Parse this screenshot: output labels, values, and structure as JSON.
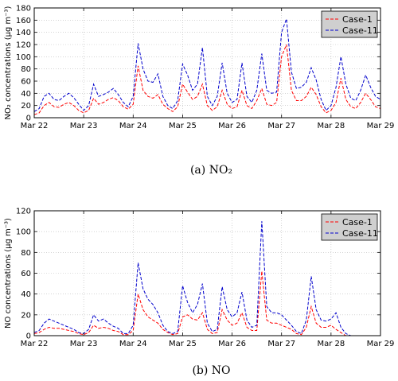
{
  "chart_data": [
    {
      "type": "line",
      "caption": "(a) NO₂",
      "ylabel": "NO₂ concentrations (μg m⁻³)",
      "xlim": [
        0,
        7
      ],
      "ylim": [
        0,
        180
      ],
      "yticks": [
        0,
        20,
        40,
        60,
        80,
        100,
        120,
        140,
        160,
        180
      ],
      "xticks": [
        0,
        1,
        2,
        3,
        4,
        5,
        6,
        7
      ],
      "xticklabels": [
        "Mar 22",
        "Mar 23",
        "Mar 24",
        "Mar 25",
        "Mar 26",
        "Mar 27",
        "Mar 28",
        "Mar 29"
      ],
      "grid": true,
      "legend_position": "top-right",
      "series": [
        {
          "name": "Case-1",
          "color": "#ff0000",
          "x": [
            0.0,
            0.1,
            0.2,
            0.3,
            0.4,
            0.5,
            0.6,
            0.7,
            0.8,
            0.9,
            1.0,
            1.1,
            1.2,
            1.3,
            1.4,
            1.5,
            1.6,
            1.7,
            1.8,
            1.9,
            2.0,
            2.1,
            2.2,
            2.3,
            2.4,
            2.5,
            2.6,
            2.7,
            2.8,
            2.9,
            3.0,
            3.1,
            3.2,
            3.3,
            3.4,
            3.5,
            3.6,
            3.7,
            3.8,
            3.9,
            4.0,
            4.1,
            4.2,
            4.3,
            4.4,
            4.5,
            4.6,
            4.7,
            4.8,
            4.9,
            5.0,
            5.1,
            5.2,
            5.3,
            5.4,
            5.5,
            5.6,
            5.7,
            5.8,
            5.9,
            6.0,
            6.1,
            6.2,
            6.3,
            6.4,
            6.5,
            6.6,
            6.7,
            6.8,
            6.9,
            7.0
          ],
          "y": [
            5,
            8,
            20,
            25,
            18,
            17,
            22,
            25,
            20,
            12,
            8,
            12,
            32,
            22,
            25,
            30,
            33,
            28,
            18,
            14,
            22,
            85,
            45,
            35,
            32,
            38,
            22,
            15,
            10,
            18,
            55,
            42,
            30,
            35,
            55,
            20,
            12,
            18,
            45,
            22,
            15,
            18,
            45,
            20,
            15,
            28,
            48,
            22,
            20,
            25,
            100,
            120,
            45,
            28,
            28,
            35,
            50,
            38,
            18,
            8,
            12,
            25,
            65,
            30,
            18,
            15,
            25,
            40,
            30,
            18,
            15
          ]
        },
        {
          "name": "Case-11",
          "color": "#0000cc",
          "x": [
            0.0,
            0.1,
            0.2,
            0.3,
            0.4,
            0.5,
            0.6,
            0.7,
            0.8,
            0.9,
            1.0,
            1.1,
            1.2,
            1.3,
            1.4,
            1.5,
            1.6,
            1.7,
            1.8,
            1.9,
            2.0,
            2.1,
            2.2,
            2.3,
            2.4,
            2.5,
            2.6,
            2.7,
            2.8,
            2.9,
            3.0,
            3.1,
            3.2,
            3.3,
            3.4,
            3.5,
            3.6,
            3.7,
            3.8,
            3.9,
            4.0,
            4.1,
            4.2,
            4.3,
            4.4,
            4.5,
            4.6,
            4.7,
            4.8,
            4.9,
            5.0,
            5.1,
            5.2,
            5.3,
            5.4,
            5.5,
            5.6,
            5.7,
            5.8,
            5.9,
            6.0,
            6.1,
            6.2,
            6.3,
            6.4,
            6.5,
            6.6,
            6.7,
            6.8,
            6.9,
            7.0
          ],
          "y": [
            10,
            15,
            35,
            40,
            30,
            28,
            35,
            40,
            33,
            22,
            12,
            20,
            55,
            35,
            38,
            42,
            48,
            38,
            25,
            18,
            35,
            122,
            80,
            60,
            58,
            72,
            35,
            20,
            15,
            28,
            88,
            70,
            45,
            55,
            115,
            35,
            20,
            35,
            90,
            40,
            25,
            30,
            90,
            35,
            25,
            45,
            105,
            45,
            40,
            42,
            140,
            162,
            75,
            48,
            50,
            58,
            82,
            62,
            30,
            12,
            20,
            50,
            100,
            55,
            32,
            28,
            45,
            70,
            50,
            35,
            30
          ]
        }
      ]
    },
    {
      "type": "line",
      "caption": "(b) NO",
      "ylabel": "NO concentrations (μg m⁻³)",
      "xlim": [
        0,
        7
      ],
      "ylim": [
        0,
        120
      ],
      "yticks": [
        0,
        20,
        40,
        60,
        80,
        100,
        120
      ],
      "xticks": [
        0,
        1,
        2,
        3,
        4,
        5,
        6,
        7
      ],
      "xticklabels": [
        "Mar 22",
        "Mar 23",
        "Mar 24",
        "Mar 25",
        "Mar 26",
        "Mar 27",
        "Mar 28",
        "Mar 29"
      ],
      "grid": true,
      "legend_position": "top-right",
      "series": [
        {
          "name": "Case-1",
          "color": "#ff0000",
          "x": [
            0.0,
            0.1,
            0.2,
            0.3,
            0.4,
            0.5,
            0.6,
            0.7,
            0.8,
            0.9,
            1.0,
            1.1,
            1.2,
            1.3,
            1.4,
            1.5,
            1.6,
            1.7,
            1.8,
            1.9,
            2.0,
            2.1,
            2.2,
            2.3,
            2.4,
            2.5,
            2.6,
            2.7,
            2.8,
            2.9,
            3.0,
            3.1,
            3.2,
            3.3,
            3.4,
            3.5,
            3.6,
            3.7,
            3.8,
            3.9,
            4.0,
            4.1,
            4.2,
            4.3,
            4.4,
            4.5,
            4.6,
            4.7,
            4.8,
            4.9,
            5.0,
            5.1,
            5.2,
            5.3,
            5.4,
            5.5,
            5.6,
            5.7,
            5.8,
            5.9,
            6.0,
            6.1,
            6.2,
            6.3,
            6.4,
            6.5,
            6.6,
            6.7,
            6.8,
            6.9,
            7.0
          ],
          "y": [
            2,
            3,
            6,
            8,
            7,
            7,
            6,
            5,
            4,
            2,
            1,
            3,
            10,
            7,
            8,
            7,
            5,
            4,
            1,
            1,
            5,
            40,
            25,
            18,
            15,
            12,
            6,
            3,
            1,
            2,
            18,
            20,
            16,
            15,
            22,
            6,
            2,
            3,
            25,
            15,
            10,
            12,
            22,
            8,
            5,
            5,
            62,
            15,
            12,
            12,
            10,
            8,
            6,
            2,
            1,
            8,
            28,
            12,
            8,
            8,
            10,
            6,
            3,
            0,
            0,
            0,
            0,
            0,
            0,
            0,
            0
          ]
        },
        {
          "name": "Case-11",
          "color": "#0000cc",
          "x": [
            0.0,
            0.1,
            0.2,
            0.3,
            0.4,
            0.5,
            0.6,
            0.7,
            0.8,
            0.9,
            1.0,
            1.1,
            1.2,
            1.3,
            1.4,
            1.5,
            1.6,
            1.7,
            1.8,
            1.9,
            2.0,
            2.1,
            2.2,
            2.3,
            2.4,
            2.5,
            2.6,
            2.7,
            2.8,
            2.9,
            3.0,
            3.1,
            3.2,
            3.3,
            3.4,
            3.5,
            3.6,
            3.7,
            3.8,
            3.9,
            4.0,
            4.1,
            4.2,
            4.3,
            4.4,
            4.5,
            4.6,
            4.7,
            4.8,
            4.9,
            5.0,
            5.1,
            5.2,
            5.3,
            5.4,
            5.5,
            5.6,
            5.7,
            5.8,
            5.9,
            6.0,
            6.1,
            6.2,
            6.3,
            6.4,
            6.5,
            6.6,
            6.7,
            6.8,
            6.9,
            7.0
          ],
          "y": [
            3,
            5,
            12,
            16,
            14,
            12,
            10,
            8,
            6,
            3,
            2,
            6,
            20,
            14,
            16,
            12,
            9,
            7,
            2,
            2,
            10,
            70,
            45,
            35,
            30,
            22,
            10,
            4,
            2,
            4,
            48,
            32,
            22,
            30,
            50,
            12,
            4,
            6,
            47,
            25,
            18,
            22,
            42,
            15,
            8,
            10,
            110,
            28,
            22,
            22,
            20,
            15,
            10,
            4,
            2,
            15,
            57,
            25,
            15,
            14,
            16,
            22,
            8,
            2,
            0,
            0,
            0,
            0,
            0,
            0,
            0
          ]
        }
      ]
    }
  ]
}
